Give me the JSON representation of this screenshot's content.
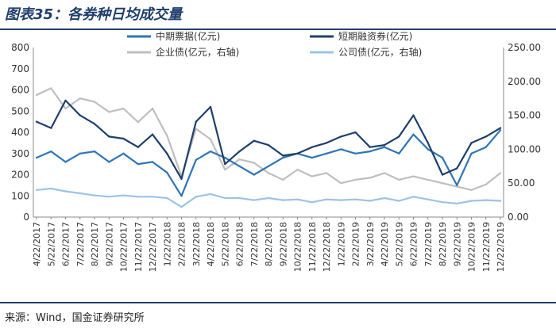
{
  "figure": {
    "title": "图表35：各券种日均成交量",
    "source": "来源：Wind，国金证券研究所"
  },
  "colors": {
    "header_rule": "#1f3f6b",
    "cp": "#2e75b6",
    "scp": "#1f3f6b",
    "enterprise": "#bfbfbf",
    "corporate": "#9dc3e6"
  },
  "chart_data": {
    "type": "line",
    "x_ticks": [
      "4/22/2017",
      "5/22/2017",
      "6/22/2017",
      "7/22/2017",
      "8/22/2017",
      "9/22/2017",
      "10/22/2017",
      "11/22/2017",
      "12/22/2017",
      "1/22/2018",
      "2/22/2018",
      "3/22/2018",
      "4/22/2018",
      "5/22/2018",
      "6/22/2018",
      "7/22/2018",
      "8/22/2018",
      "9/22/2018",
      "10/22/2018",
      "11/22/2018",
      "12/22/2018",
      "1/22/2019",
      "2/22/2019",
      "3/22/2019",
      "4/22/2019",
      "5/22/2019",
      "6/22/2019",
      "7/22/2019",
      "8/22/2019",
      "9/22/2019",
      "10/22/2019",
      "11/22/2019",
      "12/22/2019"
    ],
    "y_left": {
      "range": [
        0,
        800
      ],
      "ticks": [
        "0",
        "100",
        "200",
        "300",
        "400",
        "500",
        "600",
        "700",
        "800"
      ]
    },
    "y_right": {
      "range": [
        0,
        250
      ],
      "ticks": [
        "0.00",
        "50.00",
        "100.00",
        "150.00",
        "200.00",
        "250.00"
      ]
    },
    "legend_position": "top",
    "series": [
      {
        "name": "中期票据(亿元)",
        "axis": "left",
        "color": "#2e75b6",
        "values": [
          280,
          310,
          260,
          300,
          310,
          260,
          300,
          250,
          260,
          210,
          100,
          270,
          310,
          280,
          240,
          200,
          240,
          280,
          300,
          280,
          300,
          320,
          300,
          310,
          330,
          300,
          390,
          320,
          280,
          150,
          300,
          330,
          410
        ]
      },
      {
        "name": "短期融资券(亿元)",
        "axis": "left",
        "color": "#1f3f6b",
        "values": [
          450,
          420,
          550,
          480,
          440,
          380,
          370,
          330,
          390,
          300,
          180,
          450,
          520,
          250,
          310,
          360,
          340,
          290,
          300,
          330,
          350,
          380,
          400,
          330,
          340,
          380,
          480,
          350,
          200,
          230,
          350,
          380,
          420
        ]
      },
      {
        "name": "企业债(亿元，右轴)",
        "axis": "right",
        "color": "#bfbfbf",
        "values": [
          180,
          190,
          160,
          175,
          170,
          155,
          160,
          140,
          160,
          120,
          60,
          130,
          115,
          70,
          85,
          80,
          65,
          55,
          70,
          60,
          65,
          50,
          55,
          58,
          65,
          55,
          60,
          55,
          50,
          45,
          40,
          48,
          65
        ]
      },
      {
        "name": "公司债(亿元，右轴)",
        "axis": "right",
        "color": "#9dc3e6",
        "values": [
          40,
          42,
          38,
          35,
          32,
          30,
          32,
          30,
          30,
          28,
          15,
          30,
          34,
          28,
          28,
          25,
          28,
          25,
          26,
          22,
          26,
          25,
          26,
          24,
          28,
          24,
          30,
          26,
          22,
          20,
          24,
          25,
          24
        ]
      }
    ]
  }
}
